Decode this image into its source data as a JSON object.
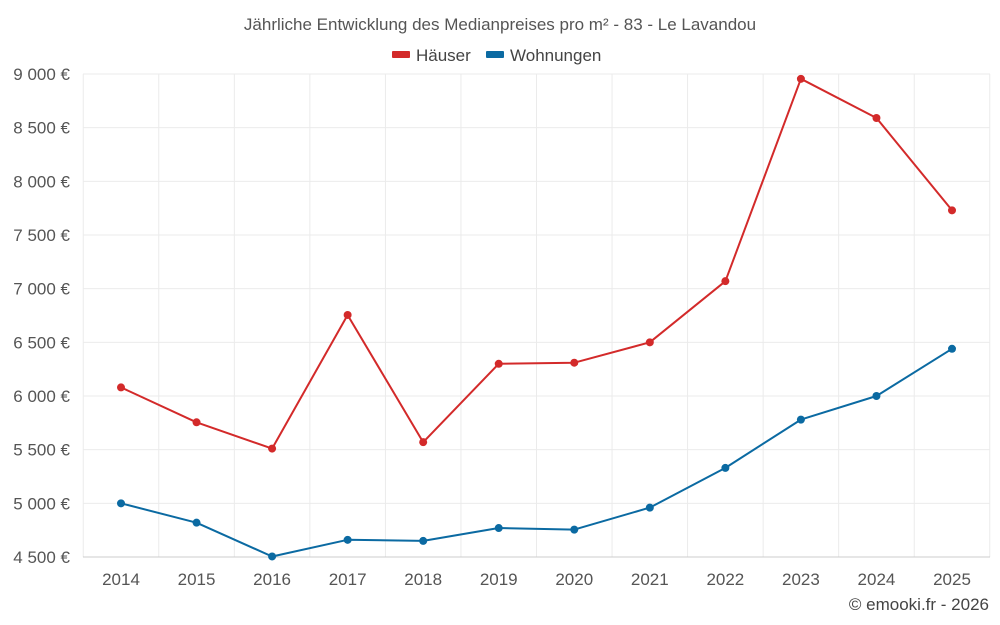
{
  "chart_data": {
    "type": "line",
    "title": "Jährliche Entwicklung des Medianpreises pro m² - 83 - Le Lavandou",
    "categories": [
      "2014",
      "2015",
      "2016",
      "2017",
      "2018",
      "2019",
      "2020",
      "2021",
      "2022",
      "2023",
      "2024",
      "2025"
    ],
    "series": [
      {
        "name": "Häuser",
        "color": "#d32a2a",
        "values": [
          6080,
          5755,
          5510,
          6755,
          5570,
          6300,
          6310,
          6500,
          7070,
          8955,
          8590,
          7730
        ]
      },
      {
        "name": "Wohnungen",
        "color": "#0b6aa2",
        "values": [
          5000,
          4820,
          4505,
          4660,
          4650,
          4770,
          4755,
          4960,
          5330,
          5780,
          6000,
          6440
        ]
      }
    ],
    "ylim": [
      4500,
      9000
    ],
    "yticks": [
      4500,
      5000,
      5500,
      6000,
      6500,
      7000,
      7500,
      8000,
      8500,
      9000
    ],
    "ytick_labels": [
      "4 500 €",
      "5 000 €",
      "5 500 €",
      "6 000 €",
      "6 500 €",
      "7 000 €",
      "7 500 €",
      "8 000 €",
      "8 500 €",
      "9 000 €"
    ],
    "xlabel": "",
    "ylabel": "",
    "grid": true,
    "legend_position": "top-center"
  },
  "credit": "© emooki.fr - 2026"
}
